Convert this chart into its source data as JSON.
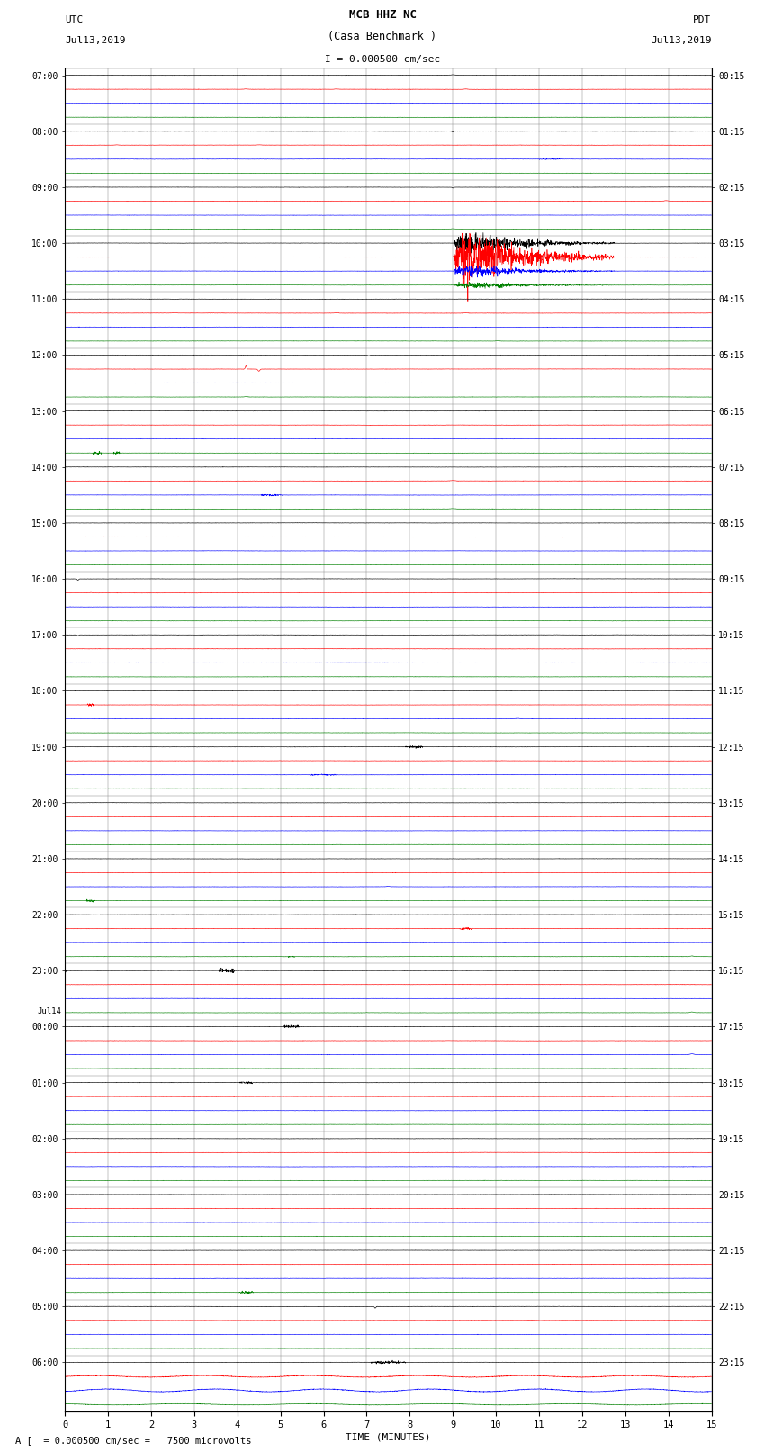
{
  "title_line1": "MCB HHZ NC",
  "title_line2": "(Casa Benchmark )",
  "title_line3": "I = 0.000500 cm/sec",
  "left_header1": "UTC",
  "left_header2": "Jul13,2019",
  "right_header1": "PDT",
  "right_header2": "Jul13,2019",
  "footer": "A [  = 0.000500 cm/sec =   7500 microvolts",
  "xlabel": "TIME (MINUTES)",
  "utc_times": [
    "07:00",
    "08:00",
    "09:00",
    "10:00",
    "11:00",
    "12:00",
    "13:00",
    "14:00",
    "15:00",
    "16:00",
    "17:00",
    "18:00",
    "19:00",
    "20:00",
    "21:00",
    "22:00",
    "23:00",
    "00:00",
    "01:00",
    "02:00",
    "03:00",
    "04:00",
    "05:00",
    "06:00"
  ],
  "pdt_times": [
    "00:15",
    "01:15",
    "02:15",
    "03:15",
    "04:15",
    "05:15",
    "06:15",
    "07:15",
    "08:15",
    "09:15",
    "10:15",
    "11:15",
    "12:15",
    "13:15",
    "14:15",
    "15:15",
    "16:15",
    "17:15",
    "18:15",
    "19:15",
    "20:15",
    "21:15",
    "22:15",
    "23:15"
  ],
  "jul14_row": 17,
  "n_rows": 24,
  "n_traces_per_row": 4,
  "colors": [
    "black",
    "red",
    "blue",
    "green"
  ],
  "x_min": 0,
  "x_max": 15,
  "x_ticks": [
    0,
    1,
    2,
    3,
    4,
    5,
    6,
    7,
    8,
    9,
    10,
    11,
    12,
    13,
    14,
    15
  ]
}
